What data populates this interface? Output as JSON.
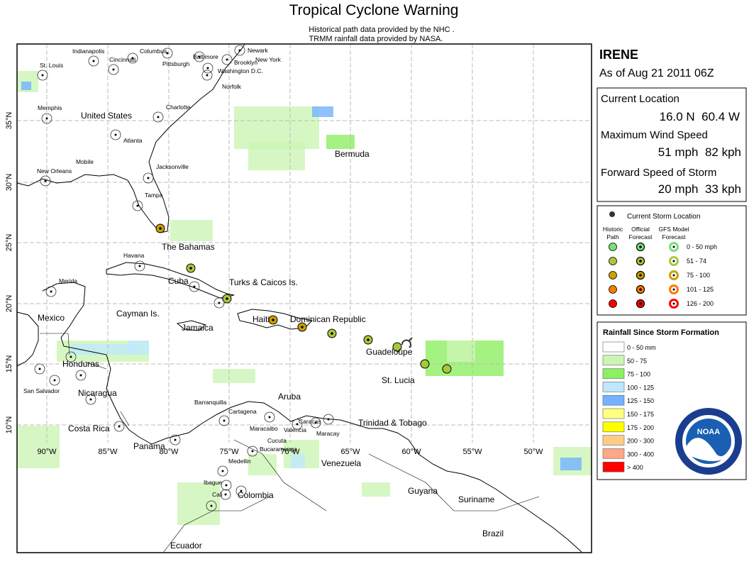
{
  "header": {
    "title": "Tropical Cyclone Warning",
    "credits": [
      "Historical path data provided by the NHC .",
      "TRMM rainfall data provided by NASA."
    ]
  },
  "map": {
    "lon_labels": [
      "90°W",
      "85°W",
      "80°W",
      "75°W",
      "70°W",
      "65°W",
      "60°W",
      "55°W",
      "50°W"
    ],
    "lat_labels": [
      "35°N",
      "30°N",
      "25°N",
      "20°N",
      "15°N",
      "10°N"
    ],
    "places": [
      "St. Louis",
      "Indianapolis",
      "Cincinnati",
      "Columbus",
      "Pittsburgh",
      "Baltimore",
      "Newark",
      "New York",
      "Brooklyn",
      "Washington D.C.",
      "Norfolk",
      "Memphis",
      "United States",
      "Charlotte",
      "Atlanta",
      "Mobile",
      "New Orleans",
      "Jacksonville",
      "Tampa",
      "The Bahamas",
      "Havana",
      "Cuba",
      "Merida",
      "Turks & Caicos Is.",
      "Cayman Is.",
      "Mexico",
      "Jamaica",
      "Haiti",
      "Dominican Republic",
      "Bermuda",
      "Guadeloupe",
      "St. Lucia",
      "Honduras",
      "San Salvador",
      "Nicaragua",
      "Costa Rica",
      "Panama",
      "Barranquilla",
      "Cartagena",
      "Aruba",
      "Caracas",
      "Valencia",
      "Maracay",
      "Maracaibo",
      "Bucaramanga",
      "Cucuta",
      "Trinidad & Tobago",
      "Medellin",
      "Venezuela",
      "Ibague",
      "Cali",
      "Colombia",
      "Guyana",
      "Suriname",
      "Brazil",
      "Ecuador"
    ]
  },
  "storm": {
    "name": "IRENE",
    "as_of": "As of Aug 21 2011 06Z",
    "fields": [
      {
        "label": "Current Location",
        "value": "16.0 N  60.4 W"
      },
      {
        "label": "Maximum Wind Speed",
        "value": "51 mph  82 kph"
      },
      {
        "label": "Forward Speed of Storm",
        "value": "20 mph  33 kph"
      }
    ]
  },
  "legend": {
    "current": "Current Storm Location",
    "columns": [
      [
        "Historic",
        "Path"
      ],
      [
        "Official",
        "Forecast"
      ],
      [
        "GFS Model",
        "Forecast"
      ]
    ],
    "categories": [
      {
        "label": "0 - 50 mph",
        "color": "#77e077"
      },
      {
        "label": "51 - 74",
        "color": "#a8c83c"
      },
      {
        "label": "75 - 100",
        "color": "#c8a000"
      },
      {
        "label": "101 - 125",
        "color": "#ff7a00"
      },
      {
        "label": "126 - 200",
        "color": "#ff0000"
      }
    ]
  },
  "rainfall": {
    "title": "Rainfall Since Storm Formation",
    "classes": [
      {
        "label": "0 - 50 mm",
        "color": "#ffffff"
      },
      {
        "label": "50 - 75",
        "color": "#ccf5b4"
      },
      {
        "label": "75 - 100",
        "color": "#8def62"
      },
      {
        "label": "100 - 125",
        "color": "#bee8ff"
      },
      {
        "label": "125 - 150",
        "color": "#73b2ff"
      },
      {
        "label": "150 - 175",
        "color": "#ffff80"
      },
      {
        "label": "175 - 200",
        "color": "#ffff00"
      },
      {
        "label": "200 - 300",
        "color": "#ffcc88"
      },
      {
        "label": "300 - 400",
        "color": "#ffa888"
      },
      {
        "label": "> 400",
        "color": "#ff0000"
      }
    ]
  },
  "logo": {
    "text": "NOAA"
  }
}
